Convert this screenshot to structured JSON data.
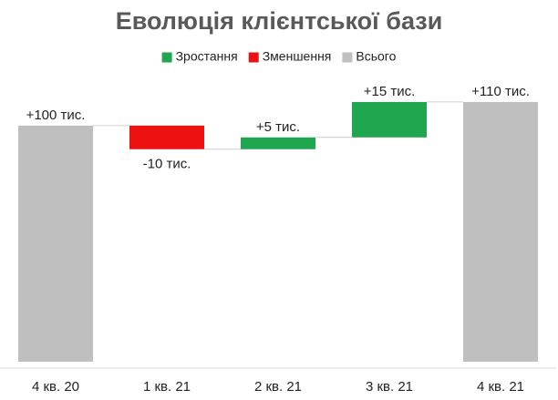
{
  "chart_data": {
    "type": "waterfall",
    "title": "Еволюція клієнтської бази",
    "legend": [
      {
        "name": "Зростання",
        "color": "#1fa64e"
      },
      {
        "name": "Зменшення",
        "color": "#ee1111"
      },
      {
        "name": "Всього",
        "color": "#bfbfbf"
      }
    ],
    "categories": [
      "4 кв. 20",
      "1 кв. 21",
      "2 кв. 21",
      "3 кв. 21",
      "4 кв. 21"
    ],
    "values": [
      100,
      -10,
      5,
      15,
      110
    ],
    "value_labels": [
      "+100 тис.",
      "-10 тис.",
      "+5 тис.",
      "+15 тис.",
      "+110 тис."
    ],
    "ylim": [
      0,
      120
    ]
  }
}
